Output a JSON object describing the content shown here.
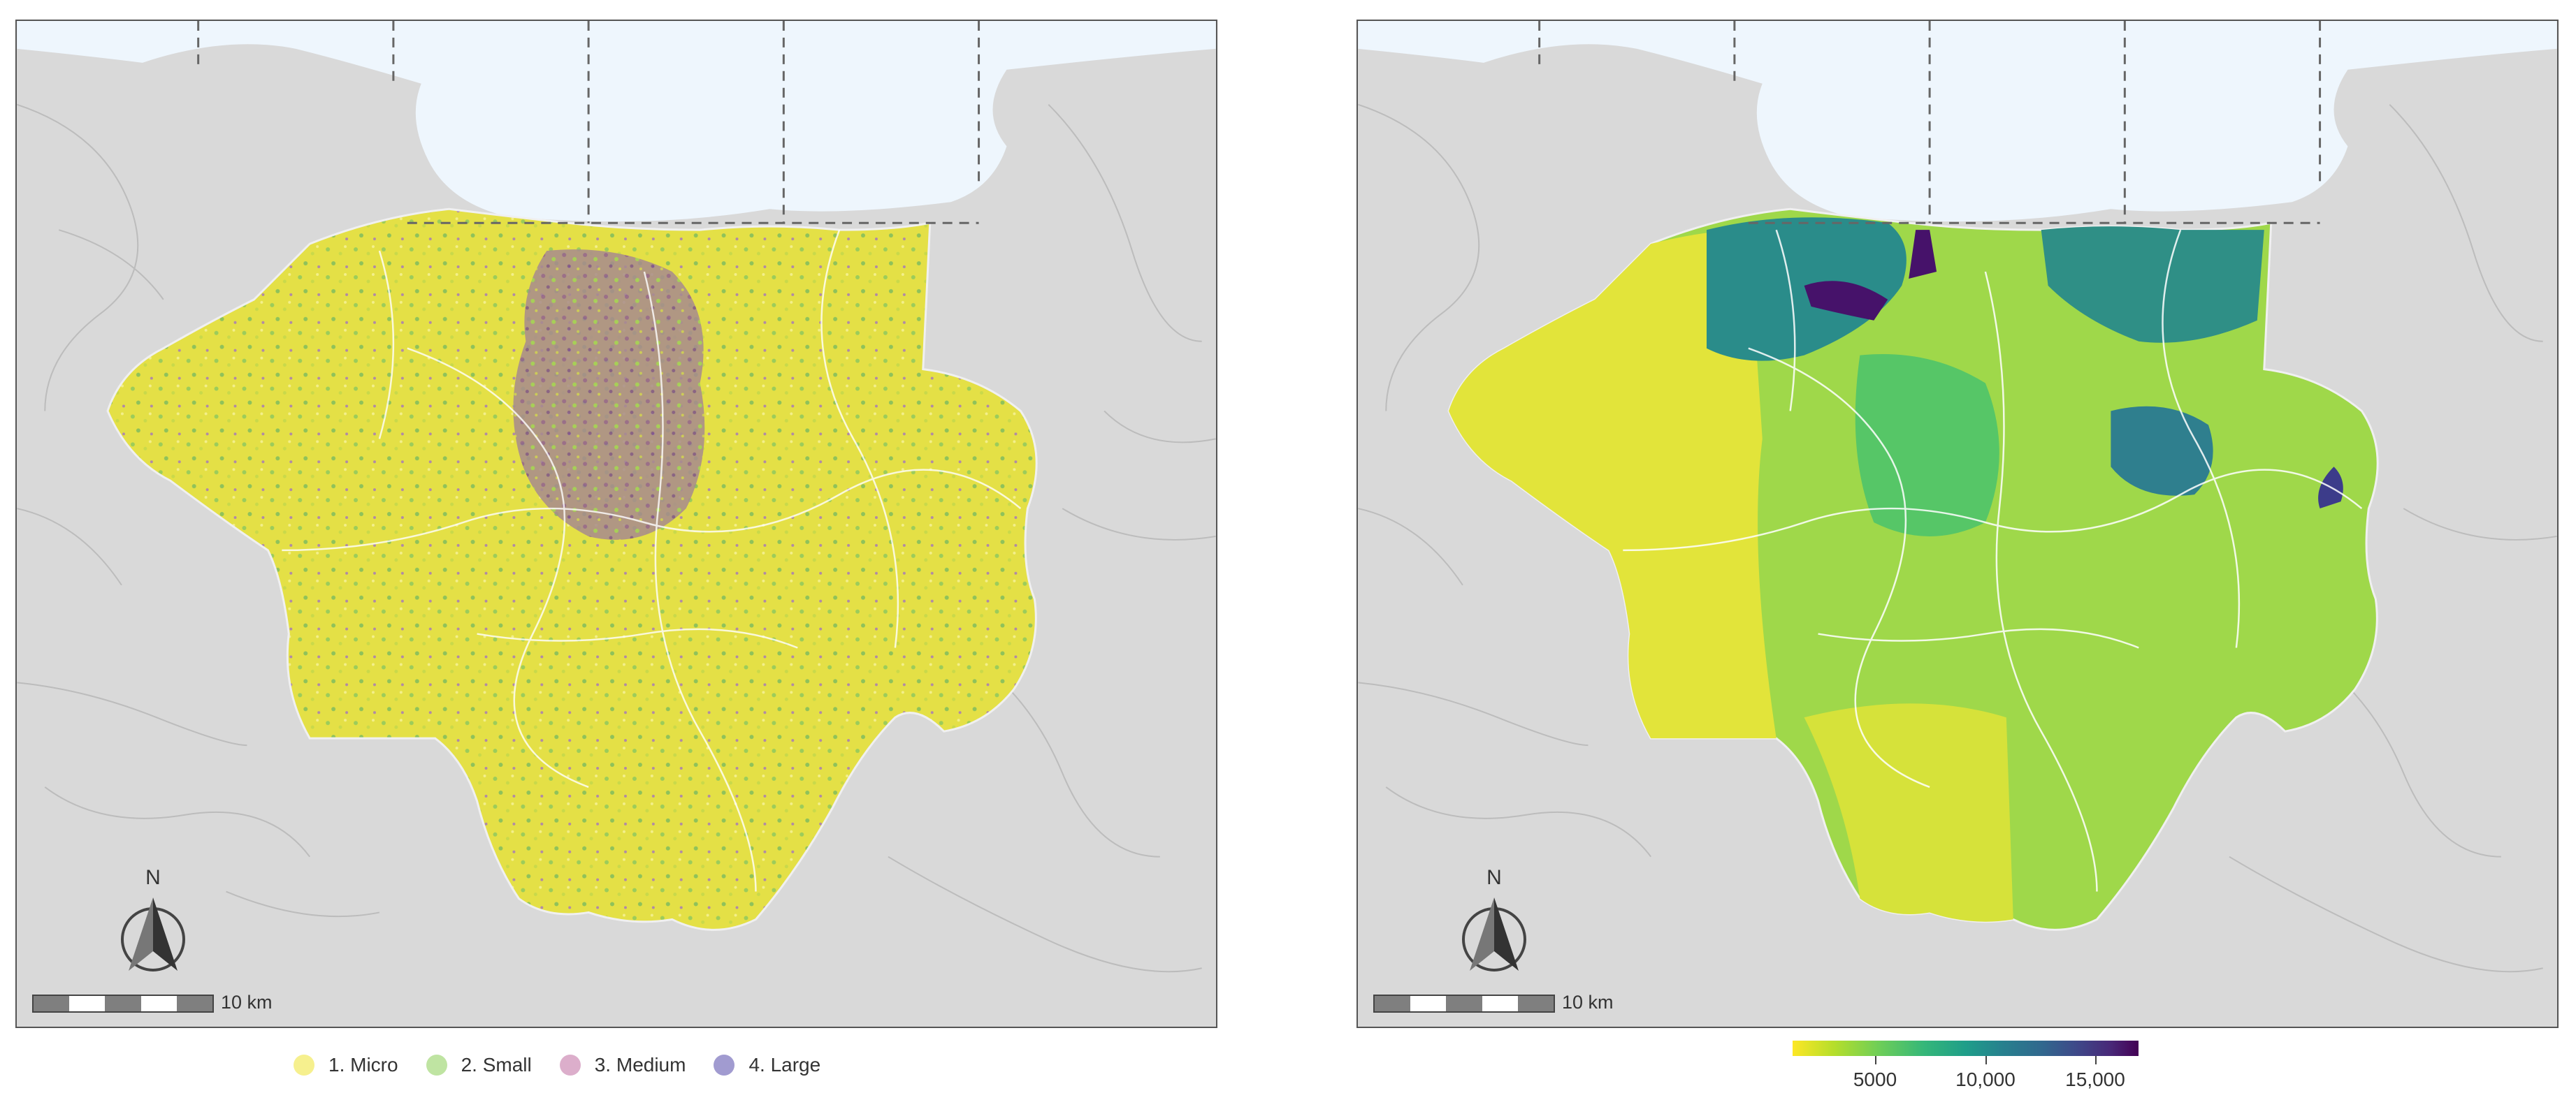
{
  "left_map": {
    "north_label": "N",
    "scale_label": "10 km",
    "legend": [
      {
        "label": "1. Micro",
        "color": "#f4ee7a"
      },
      {
        "label": "2. Small",
        "color": "#b9e29a"
      },
      {
        "label": "3. Medium",
        "color": "#d9a8c8"
      },
      {
        "label": "4. Large",
        "color": "#9b93cc"
      }
    ],
    "colors": {
      "sea": "#eef6fd",
      "land_outside": "#d9d9d9",
      "micro": "#e8e440",
      "small": "#9ccc5a",
      "medium": "#9a6a8c",
      "large": "#7a4e8e"
    }
  },
  "right_map": {
    "north_label": "N",
    "scale_label": "10 km",
    "colorbar": {
      "scale": "viridis",
      "labels": [
        "5000",
        "10,000",
        "15,000"
      ]
    },
    "colors": {
      "sea": "#eef6fd",
      "land_outside": "#d9d9d9"
    }
  }
}
